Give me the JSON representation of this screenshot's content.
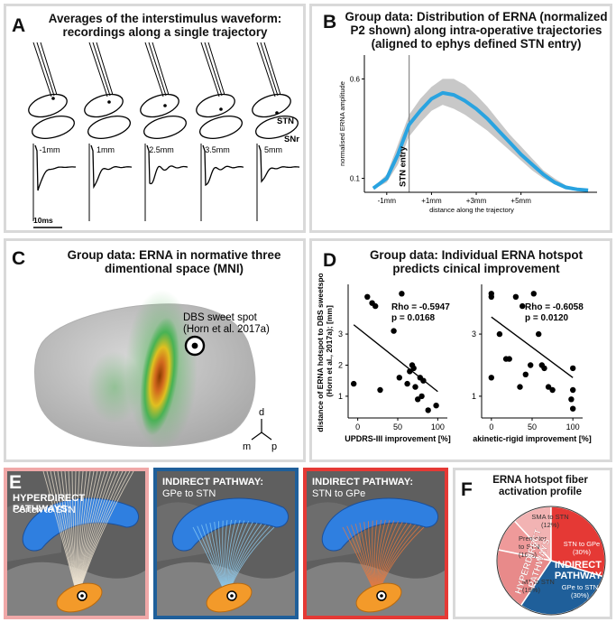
{
  "panelA": {
    "letter": "A",
    "title_line1": "Averages of the interstimulus waveform:",
    "title_line2": "recordings along a single trajectory",
    "labels": {
      "stn": "STN",
      "snr": "SNr",
      "scale": "10ms"
    },
    "depths": [
      "-1mm",
      "1mm",
      "2.5mm",
      "3.5mm",
      "5mm"
    ]
  },
  "panelB": {
    "letter": "B",
    "title_line1": "Group data: Distribution of ERNA (normalized",
    "title_line2": "P2 shown) along intra-operative trajectories",
    "title_line3": "(aligned to ephys defined STN entry)",
    "stn_entry": "STN entry"
  },
  "panelC": {
    "letter": "C",
    "title_line1": "Group data: ERNA in normative three",
    "title_line2": "dimentional space (MNI)",
    "sweet_spot_line1": "DBS sweet spot",
    "sweet_spot_line2": "(Horn et al. 2017a)",
    "axes": {
      "d": "d",
      "m": "m",
      "p": "p"
    }
  },
  "panelD": {
    "letter": "D",
    "title_line1": "Group data: Individual ERNA hotspot",
    "title_line2": "predicts cinical improvement"
  },
  "panelE": {
    "letter": "E",
    "hyper_title": "HYPERDIRECT PATHWAYS:",
    "hyper_sub": "Cortex to STN",
    "ind1_title": "INDIRECT PATHWAY:",
    "ind1_sub": "GPe to STN",
    "ind2_title": "INDIRECT PATHWAY:",
    "ind2_sub": "STN to GPe",
    "colors": {
      "hyper": "#ef9a9a",
      "ind1": "#1f5f9a",
      "ind2": "#e53935"
    }
  },
  "panelF": {
    "letter": "F",
    "title_line1": "ERNA hotspot fiber",
    "title_line2": "activation profile",
    "hyper_label_1": "HYPERDIRECT",
    "hyper_label_2": "PATHWAYS",
    "indirect_label_1": "INDIRECT",
    "indirect_label_2": "PATHWAY"
  },
  "chart_data": [
    {
      "type": "area",
      "xlabel": "distance along the trajectory",
      "ylabel": "normalised ERNA amplitude",
      "x_tick_labels": [
        "-1mm",
        "+1mm",
        "+3mm",
        "+5mm"
      ],
      "x_ticks": [
        -1,
        1,
        3,
        5
      ],
      "y_tick_labels": [
        "0.1",
        "0.6"
      ],
      "y_ticks": [
        0.1,
        0.6
      ],
      "xlim": [
        -2,
        8.4
      ],
      "ylim": [
        0.03,
        0.72
      ],
      "stn_entry_x": 0,
      "series": [
        {
          "x": [
            -1.6,
            -1,
            -0.5,
            0,
            0.5,
            1,
            1.5,
            2,
            2.5,
            3,
            3.5,
            4,
            4.5,
            5,
            5.5,
            6,
            6.5,
            7,
            7.5,
            8
          ],
          "mean": [
            0.05,
            0.1,
            0.22,
            0.37,
            0.44,
            0.5,
            0.53,
            0.52,
            0.49,
            0.45,
            0.4,
            0.34,
            0.28,
            0.22,
            0.17,
            0.12,
            0.08,
            0.055,
            0.045,
            0.04
          ],
          "upper": [
            0.055,
            0.12,
            0.27,
            0.42,
            0.5,
            0.56,
            0.6,
            0.6,
            0.57,
            0.52,
            0.46,
            0.39,
            0.32,
            0.26,
            0.2,
            0.14,
            0.1,
            0.065,
            0.05,
            0.045
          ],
          "lower": [
            0.045,
            0.08,
            0.17,
            0.31,
            0.38,
            0.44,
            0.47,
            0.45,
            0.42,
            0.38,
            0.34,
            0.29,
            0.24,
            0.19,
            0.14,
            0.1,
            0.07,
            0.045,
            0.04,
            0.035
          ]
        }
      ],
      "colors": {
        "line": "#29a3e0",
        "band": "#c8c8c8"
      }
    },
    {
      "type": "scatter",
      "xlabel": "UPDRS-III improvement [%]",
      "ylabel_line1": "distance of ERNA hotspot to DBS sweetspot",
      "ylabel_line2": "(Horn et al., 2017a); [mm]",
      "x_tick_labels": [
        "0",
        "50",
        "100"
      ],
      "x_ticks": [
        0,
        50,
        100
      ],
      "y_tick_labels": [
        "1",
        "2",
        "3"
      ],
      "y_ticks": [
        1,
        2,
        3
      ],
      "xlim": [
        -12,
        112
      ],
      "ylim": [
        0.3,
        4.6
      ],
      "rho": "Rho = -0.5947",
      "p": "p = 0.0168",
      "x": [
        -5,
        12,
        18,
        22,
        28,
        45,
        52,
        55,
        62,
        65,
        68,
        70,
        72,
        75,
        78,
        80,
        82,
        88,
        98
      ],
      "y": [
        1.4,
        4.2,
        4.0,
        3.9,
        1.2,
        3.1,
        1.6,
        4.3,
        1.4,
        1.8,
        2.0,
        1.9,
        1.3,
        0.9,
        1.6,
        1.0,
        1.5,
        0.55,
        0.7
      ],
      "fit": {
        "x": [
          -5,
          100
        ],
        "y": [
          3.3,
          1.15
        ]
      }
    },
    {
      "type": "scatter",
      "xlabel": "akinetic-rigid improvement [%]",
      "x_tick_labels": [
        "0",
        "50",
        "100"
      ],
      "x_ticks": [
        0,
        50,
        100
      ],
      "y_tick_labels": [
        "1",
        "3"
      ],
      "y_ticks": [
        1,
        3
      ],
      "xlim": [
        -12,
        112
      ],
      "ylim": [
        0.3,
        4.6
      ],
      "rho": "Rho = -0.6058",
      "p": "p = 0.0120",
      "x": [
        0,
        0,
        0,
        10,
        18,
        22,
        30,
        35,
        38,
        42,
        48,
        52,
        58,
        62,
        65,
        70,
        75,
        98,
        100,
        100,
        100
      ],
      "y": [
        4.3,
        4.2,
        1.6,
        3.0,
        2.2,
        2.2,
        4.2,
        1.3,
        3.9,
        1.7,
        2.0,
        4.3,
        3.0,
        2.0,
        1.9,
        1.3,
        1.2,
        0.9,
        1.9,
        1.2,
        0.6
      ],
      "fit": {
        "x": [
          0,
          100
        ],
        "y": [
          3.55,
          1.6
        ]
      }
    },
    {
      "type": "pie",
      "labels": [
        "SMA to STN",
        "Premotor to STN",
        "M1 to STN",
        "GPe to STN",
        "STN to GPe"
      ],
      "values": [
        12,
        10,
        19,
        30,
        30
      ],
      "value_labels": [
        "(12%)",
        "(10%)",
        "(19%)",
        "(30%)",
        "(30%)"
      ],
      "colors": [
        "#f2b3b3",
        "#ef9a9a",
        "#e88a8a",
        "#1f5f9a",
        "#e53935"
      ]
    }
  ]
}
